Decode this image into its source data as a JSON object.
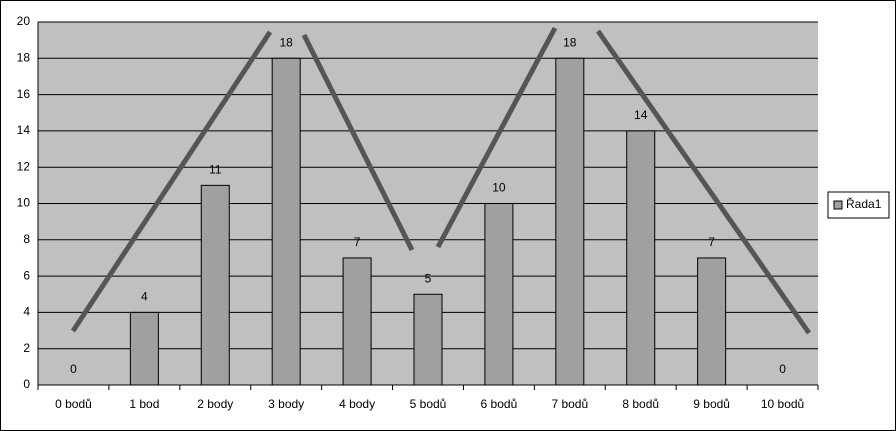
{
  "chart_data": {
    "type": "bar",
    "categories": [
      "0 bodů",
      "1 bod",
      "2 body",
      "3 body",
      "4 body",
      "5 bodů",
      "6 bodů",
      "7 bodů",
      "8 bodů",
      "9 bodů",
      "10 bodů"
    ],
    "series": [
      {
        "name": "Řada1",
        "color": "#a0a0a0",
        "values": [
          0,
          4,
          11,
          18,
          7,
          5,
          10,
          18,
          14,
          7,
          0
        ]
      }
    ],
    "ylim": [
      0,
      20
    ],
    "yticks": [
      0,
      2,
      4,
      6,
      8,
      10,
      12,
      14,
      16,
      18,
      20
    ],
    "grid": true,
    "legend": "right"
  }
}
